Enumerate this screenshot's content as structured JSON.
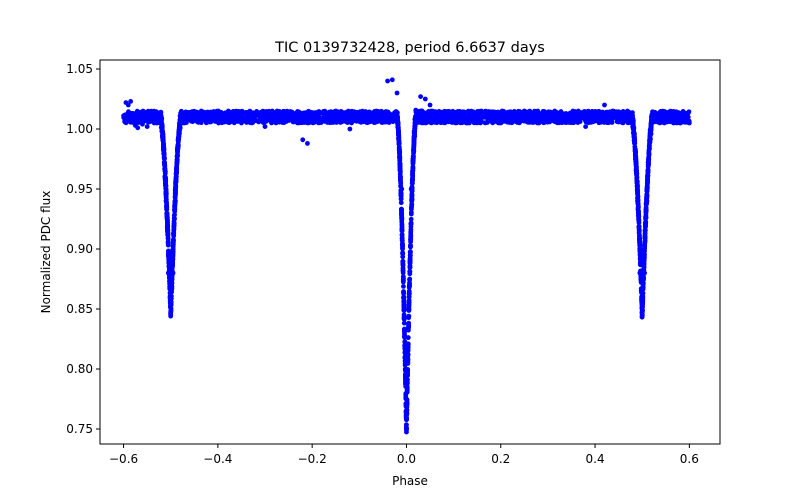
{
  "chart_data": {
    "type": "scatter",
    "title": "TIC 0139732428, period 6.6637 days",
    "xlabel": "Phase",
    "ylabel": "Normalized PDC flux",
    "xlim": [
      -0.65,
      0.665
    ],
    "ylim": [
      0.7375,
      1.0575
    ],
    "xticks": [
      -0.6,
      -0.4,
      -0.2,
      0.0,
      0.2,
      0.4,
      0.6
    ],
    "xtick_labels": [
      "−0.6",
      "−0.4",
      "−0.2",
      "0.0",
      "0.2",
      "0.4",
      "0.6"
    ],
    "yticks": [
      0.75,
      0.8,
      0.85,
      0.9,
      0.95,
      1.0,
      1.05
    ],
    "ytick_labels": [
      "0.75",
      "0.80",
      "0.85",
      "0.90",
      "0.95",
      "1.00",
      "1.05"
    ],
    "marker_color": "#0000ff",
    "series": [
      {
        "name": "PDC flux",
        "baseline": 1.01,
        "phase_range": [
          -0.6,
          0.6
        ],
        "eclipses": [
          {
            "center": -0.5,
            "min_flux": 0.845,
            "half_width": 0.022
          },
          {
            "center": 0.0,
            "min_flux": 0.75,
            "half_width": 0.02
          },
          {
            "center": 0.5,
            "min_flux": 0.845,
            "half_width": 0.022
          }
        ],
        "points": [
          [
            -0.6,
            1.011
          ],
          [
            -0.595,
            1.022
          ],
          [
            -0.59,
            1.02
          ],
          [
            -0.585,
            1.023
          ],
          [
            -0.58,
            1.013
          ],
          [
            -0.575,
            1.003
          ],
          [
            -0.57,
            1.001
          ],
          [
            -0.56,
            1.004
          ],
          [
            -0.55,
            1.002
          ],
          [
            -0.535,
            1.005
          ],
          [
            -0.52,
            1.01
          ],
          [
            -0.51,
            0.94
          ],
          [
            -0.505,
            0.88
          ],
          [
            -0.5,
            0.845
          ],
          [
            -0.495,
            0.88
          ],
          [
            -0.49,
            0.94
          ],
          [
            -0.48,
            1.005
          ],
          [
            -0.45,
            1.008
          ],
          [
            -0.4,
            1.006
          ],
          [
            -0.35,
            1.005
          ],
          [
            -0.3,
            1.002
          ],
          [
            -0.25,
            1.01
          ],
          [
            -0.22,
            0.991
          ],
          [
            -0.21,
            0.988
          ],
          [
            -0.15,
            1.015
          ],
          [
            -0.12,
            1.0
          ],
          [
            -0.1,
            1.008
          ],
          [
            -0.05,
            1.011
          ],
          [
            -0.04,
            1.04
          ],
          [
            -0.03,
            1.041
          ],
          [
            -0.02,
            1.03
          ],
          [
            -0.01,
            0.95
          ],
          [
            -0.005,
            0.85
          ],
          [
            0.0,
            0.75
          ],
          [
            0.005,
            0.85
          ],
          [
            0.01,
            0.95
          ],
          [
            0.02,
            1.01
          ],
          [
            0.03,
            1.027
          ],
          [
            0.04,
            1.025
          ],
          [
            0.05,
            1.02
          ],
          [
            0.1,
            1.013
          ],
          [
            0.15,
            1.012
          ],
          [
            0.2,
            1.011
          ],
          [
            0.25,
            1.015
          ],
          [
            0.3,
            1.012
          ],
          [
            0.35,
            1.01
          ],
          [
            0.38,
            1.002
          ],
          [
            0.4,
            1.008
          ],
          [
            0.42,
            1.02
          ],
          [
            0.45,
            1.012
          ],
          [
            0.48,
            1.005
          ],
          [
            0.49,
            0.94
          ],
          [
            0.495,
            0.88
          ],
          [
            0.5,
            0.845
          ],
          [
            0.505,
            0.88
          ],
          [
            0.51,
            0.94
          ],
          [
            0.52,
            1.005
          ],
          [
            0.55,
            1.008
          ],
          [
            0.58,
            1.005
          ],
          [
            0.59,
            1.01
          ],
          [
            0.6,
            1.005
          ]
        ]
      }
    ]
  }
}
